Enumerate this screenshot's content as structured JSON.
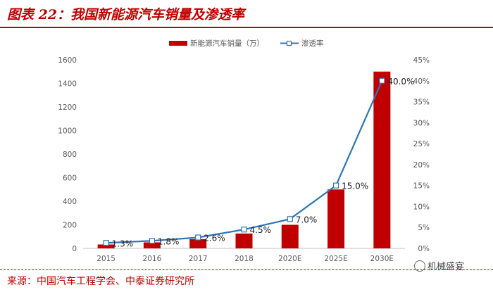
{
  "figure_title": "图表 22：我国新能源汽车销量及渗透率",
  "source": "来源：中国汽车工程学会、中泰证券研究所",
  "watermark": "机械盛宴",
  "colors": {
    "bar": "#c00000",
    "line": "#2e75b6",
    "title": "#c00000",
    "axis_text": "#595959"
  },
  "chart_data": {
    "type": "bar+line",
    "title": "",
    "categories": [
      "2015",
      "2016",
      "2017",
      "2018",
      "2020E",
      "2025E",
      "2030E"
    ],
    "series": [
      {
        "name": "新能源汽车销量（万）",
        "type": "bar",
        "axis": "left",
        "values": [
          33,
          51,
          78,
          126,
          200,
          500,
          1500
        ]
      },
      {
        "name": "渗透率",
        "type": "line",
        "axis": "right",
        "values": [
          1.3,
          1.8,
          2.6,
          4.5,
          7.0,
          15.0,
          40.0
        ],
        "labels": [
          "1.3%",
          "1.8%",
          "2.6%",
          "4.5%",
          "7.0%",
          "15.0%",
          "40.0%"
        ]
      }
    ],
    "y_left": {
      "min": 0,
      "max": 1600,
      "step": 200,
      "ticks": [
        "0",
        "200",
        "400",
        "600",
        "800",
        "1000",
        "1200",
        "1400",
        "1600"
      ]
    },
    "y_right": {
      "min": 0,
      "max": 45,
      "step": 5,
      "ticks": [
        "0%",
        "5%",
        "10%",
        "15%",
        "20%",
        "25%",
        "30%",
        "35%",
        "40%",
        "45%"
      ]
    },
    "legend_position": "top-center",
    "grid": false
  }
}
